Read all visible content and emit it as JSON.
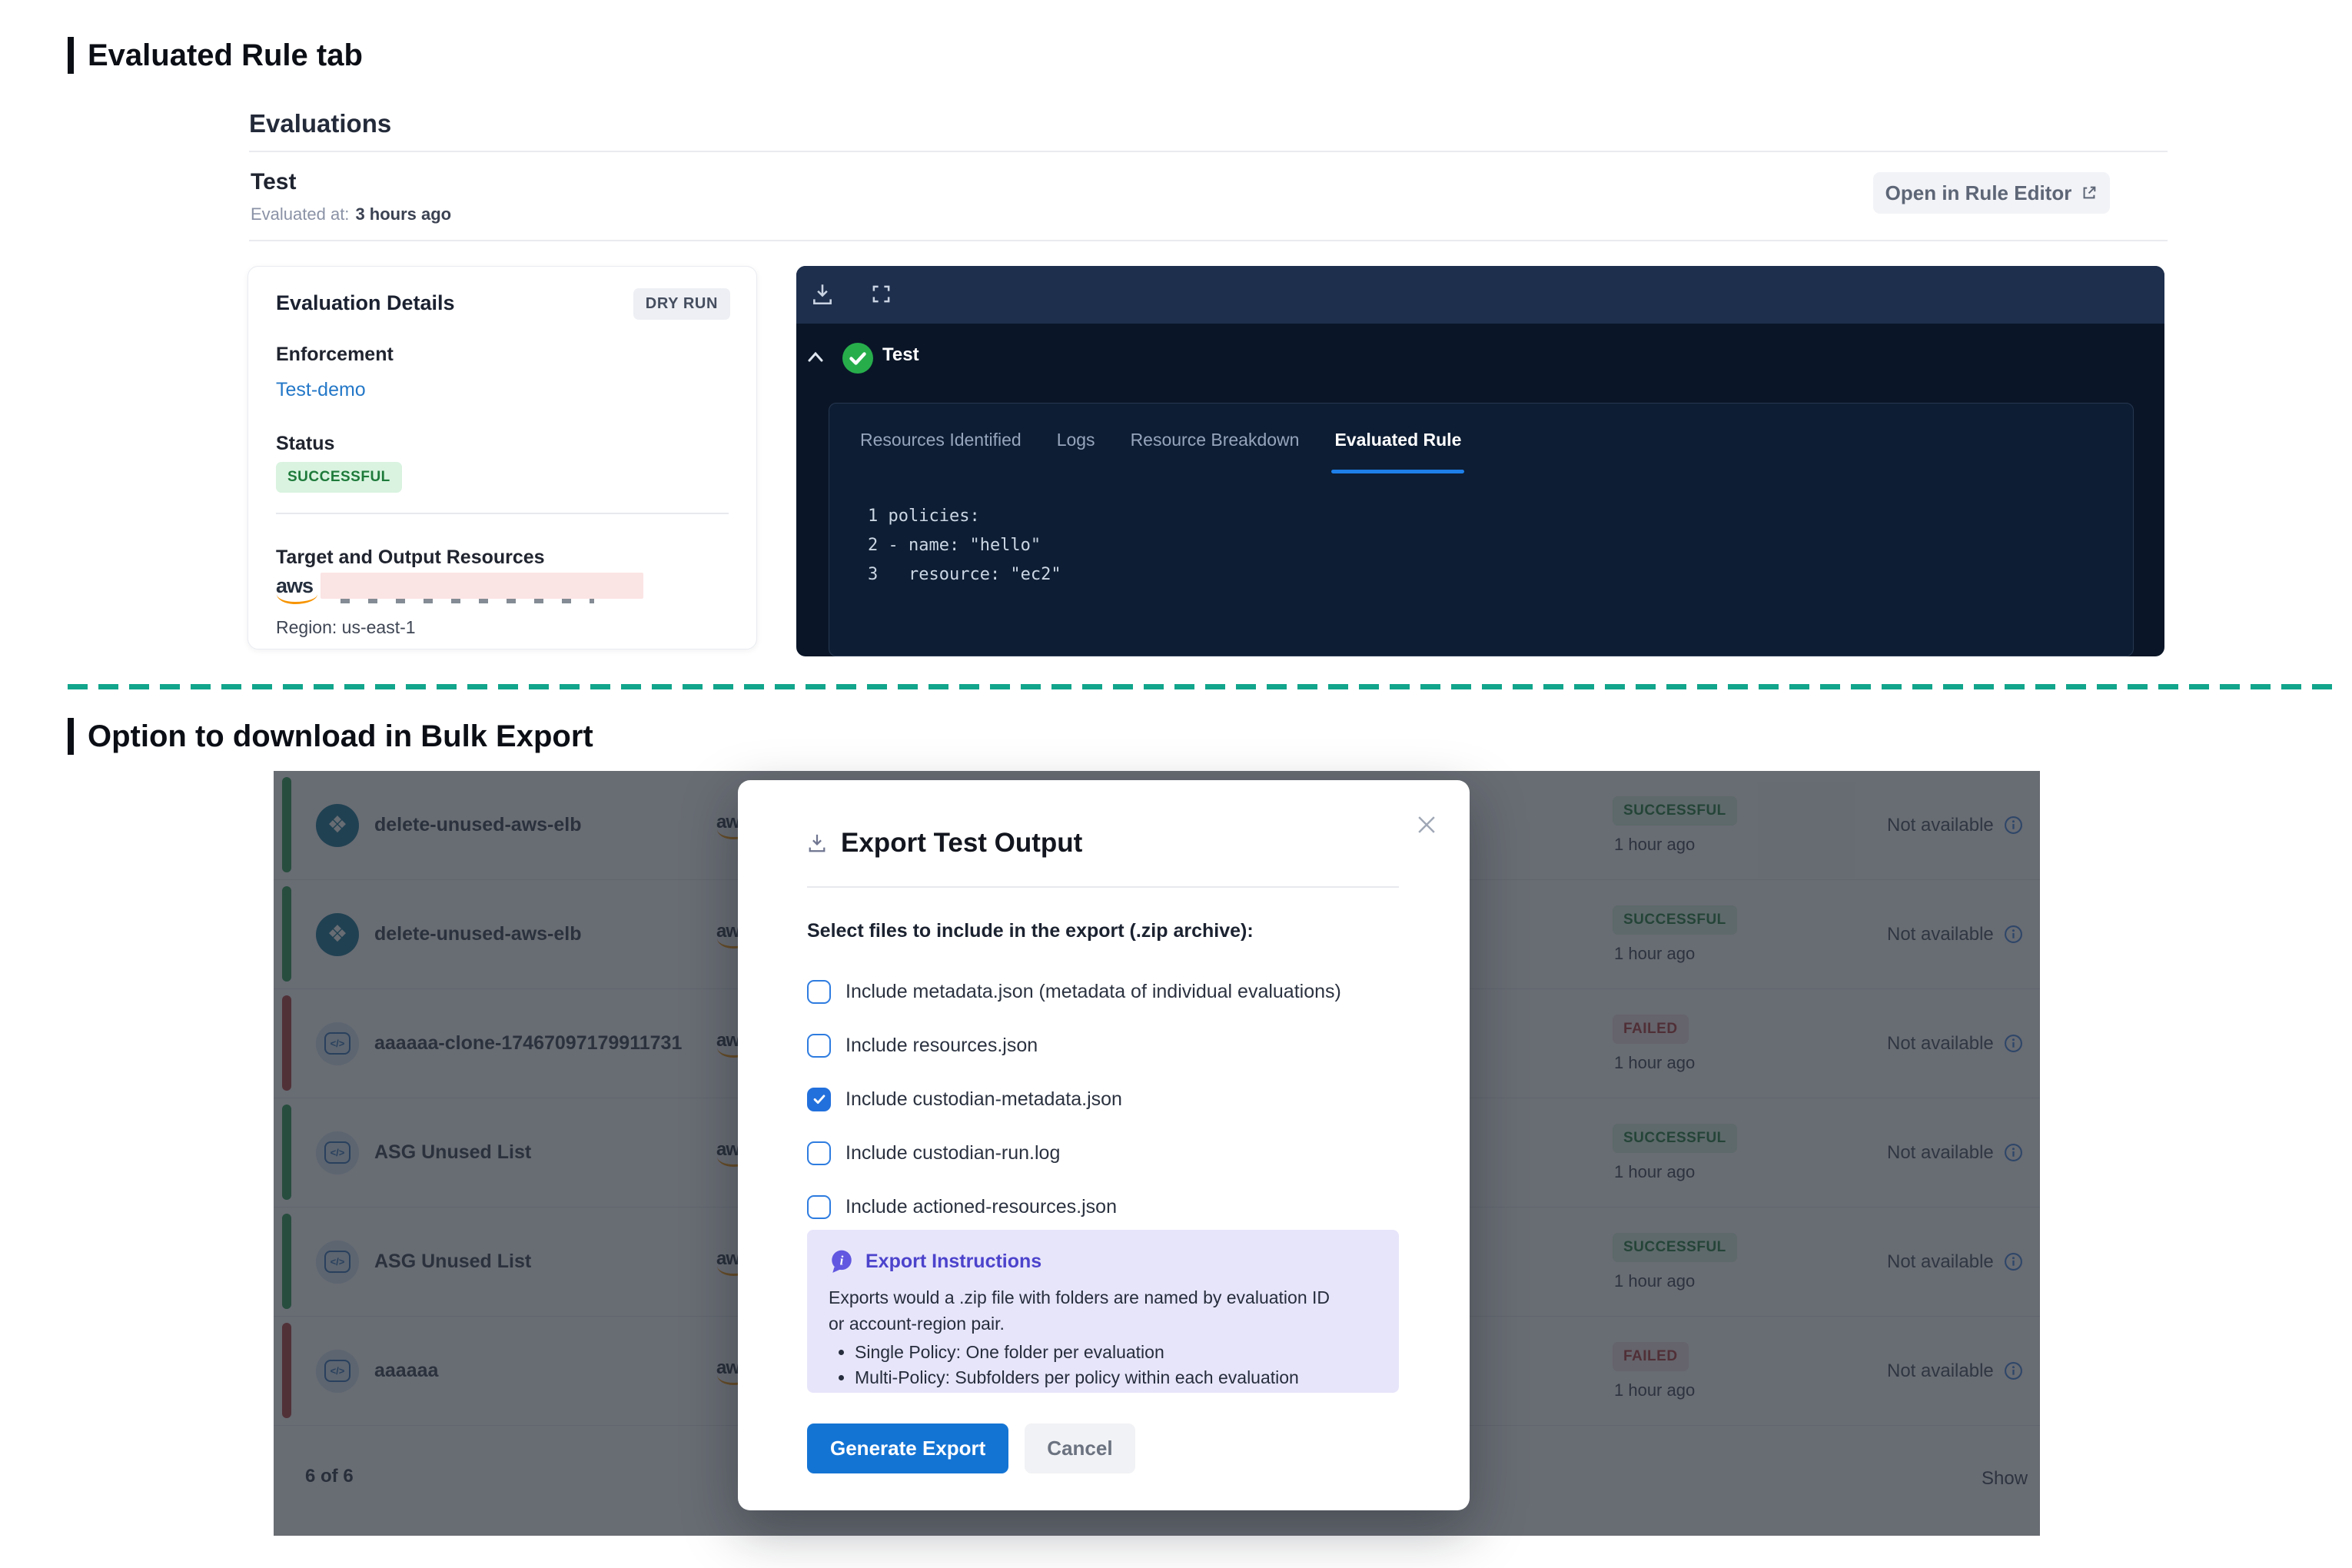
{
  "sections": {
    "first_heading": "Evaluated Rule tab",
    "second_heading": "Option to download in Bulk Export"
  },
  "evaluations": {
    "title": "Evaluations",
    "eval_name": "Test",
    "evaluated_at_label": "Evaluated at:",
    "evaluated_at_value": "3 hours ago",
    "open_in_rule_editor": "Open in Rule Editor"
  },
  "details_card": {
    "title": "Evaluation Details",
    "badge": "DRY RUN",
    "enforcement_label": "Enforcement",
    "enforcement_value": "Test-demo",
    "status_label": "Status",
    "status_value": "SUCCESSFUL",
    "target_label": "Target and Output Resources",
    "aws_logo": "aws",
    "region": "Region: us-east-1"
  },
  "viewer": {
    "name": "Test",
    "tabs": [
      {
        "label": "Resources Identified",
        "active": false
      },
      {
        "label": "Logs",
        "active": false
      },
      {
        "label": "Resource Breakdown",
        "active": false
      },
      {
        "label": "Evaluated Rule",
        "active": true
      }
    ],
    "code_lines": [
      {
        "num": "1",
        "text": "policies:"
      },
      {
        "num": "2",
        "text": "- name: \"hello\""
      },
      {
        "num": "3",
        "text": "  resource: \"ec2\""
      }
    ]
  },
  "bulk_table": {
    "aws_logo": "aws",
    "rows": [
      {
        "name": "delete-unused-aws-elb",
        "icon": "pack",
        "bar": "green",
        "status": "SUCCESSFUL",
        "time": "1 hour ago",
        "availability": "Not available"
      },
      {
        "name": "delete-unused-aws-elb",
        "icon": "pack",
        "bar": "green",
        "status": "SUCCESSFUL",
        "time": "1 hour ago",
        "availability": "Not available"
      },
      {
        "name": "aaaaaa-clone-17467097179911731",
        "icon": "policy",
        "bar": "red",
        "status": "FAILED",
        "time": "1 hour ago",
        "availability": "Not available"
      },
      {
        "name": "ASG Unused List",
        "icon": "policy",
        "bar": "green",
        "status": "SUCCESSFUL",
        "time": "1 hour ago",
        "availability": "Not available"
      },
      {
        "name": "ASG Unused List",
        "icon": "policy",
        "bar": "green",
        "status": "SUCCESSFUL",
        "time": "1 hour ago",
        "availability": "Not available"
      },
      {
        "name": "aaaaaa",
        "icon": "policy",
        "bar": "red",
        "status": "FAILED",
        "time": "1 hour ago",
        "availability": "Not available"
      }
    ],
    "footer_count": "6 of 6",
    "footer_show": "Show"
  },
  "modal": {
    "title": "Export Test Output",
    "select_label": "Select files to include in the export (.zip archive):",
    "checkboxes": [
      {
        "label": "Include metadata.json (metadata of individual evaluations)",
        "checked": false
      },
      {
        "label": "Include resources.json",
        "checked": false
      },
      {
        "label": "Include custodian-metadata.json",
        "checked": true
      },
      {
        "label": "Include custodian-run.log",
        "checked": false
      },
      {
        "label": "Include actioned-resources.json",
        "checked": false
      }
    ],
    "instructions": {
      "title": "Export Instructions",
      "body": "Exports would a .zip file with folders are named by evaluation ID or account-region pair.",
      "bullets": [
        "Single Policy: One folder per evaluation",
        "Multi-Policy: Subfolders per policy within each evaluation"
      ]
    },
    "generate_button": "Generate Export",
    "cancel_button": "Cancel"
  },
  "icons": {
    "diamond_glyph": "❖",
    "policy_glyph": "</>"
  },
  "colors": {
    "accent_blue": "#1474d4",
    "tab_underline": "#1e7fe8",
    "success_bg": "#d9f3e0",
    "success_text": "#1e7a3a",
    "failed_bg": "#f6e2e4",
    "failed_text": "#ad3338",
    "dashed_separator": "#12a58c",
    "lavender_box": "#e7e5fa",
    "indigo_text": "#4c43cc",
    "dark_header": "#1e2f4d",
    "dark_body": "#0a1628"
  }
}
